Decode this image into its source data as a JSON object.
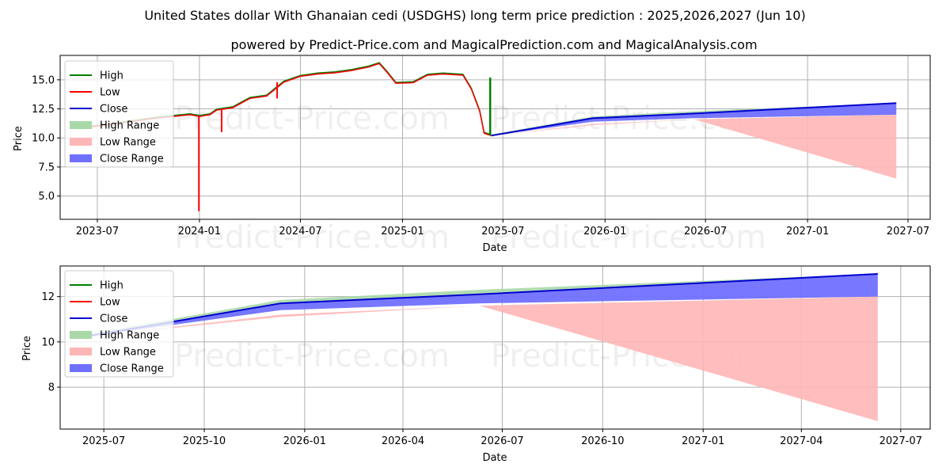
{
  "title_line1": "United States dollar With Ghanaian cedi (USDGHS) long term price prediction : 2025,2026,2027 (Jun 10)",
  "title_line2": "powered by Predict-Price.com and MagicalPrediction.com and MagicalAnalysis.com",
  "watermark": "Predict-Price.com",
  "legend": [
    "High",
    "Low",
    "Close",
    "High Range",
    "Low Range",
    "Close Range"
  ],
  "colors": {
    "high": "#008000",
    "low": "#ff0000",
    "close": "#0000cd",
    "high_range": "#a9d8a9",
    "low_range": "#ffb6b6",
    "close_range": "#7070ff",
    "grid": "#b0b0b0"
  },
  "chart_data": [
    {
      "type": "line",
      "xlabel": "Date",
      "ylabel": "Price",
      "xlim": [
        "2023-04-25",
        "2027-08-10"
      ],
      "ylim": [
        3.0,
        17.1
      ],
      "x_ticks": [
        {
          "date": "2023-07-01",
          "label": "2023-07"
        },
        {
          "date": "2024-01-01",
          "label": "2024-01"
        },
        {
          "date": "2024-07-01",
          "label": "2024-07"
        },
        {
          "date": "2025-01-01",
          "label": "2025-01"
        },
        {
          "date": "2025-07-01",
          "label": "2025-07"
        },
        {
          "date": "2026-01-01",
          "label": "2026-01"
        },
        {
          "date": "2026-07-01",
          "label": "2026-07"
        },
        {
          "date": "2027-01-01",
          "label": "2027-01"
        },
        {
          "date": "2027-07-01",
          "label": "2027-07"
        }
      ],
      "y_ticks": [
        5.0,
        7.5,
        10.0,
        12.5,
        15.0
      ],
      "history": [
        [
          "2023-06-15",
          10.9
        ],
        [
          "2023-07-15",
          11.1
        ],
        [
          "2023-09-01",
          11.4
        ],
        [
          "2023-10-15",
          11.7
        ],
        [
          "2023-11-15",
          11.85
        ],
        [
          "2023-12-15",
          12.0
        ],
        [
          "2024-01-01",
          11.85
        ],
        [
          "2024-01-20",
          12.0
        ],
        [
          "2024-02-01",
          12.4
        ],
        [
          "2024-03-01",
          12.6
        ],
        [
          "2024-04-01",
          13.4
        ],
        [
          "2024-05-01",
          13.6
        ],
        [
          "2024-06-01",
          14.8
        ],
        [
          "2024-07-01",
          15.3
        ],
        [
          "2024-08-01",
          15.5
        ],
        [
          "2024-09-01",
          15.6
        ],
        [
          "2024-10-01",
          15.8
        ],
        [
          "2024-11-01",
          16.1
        ],
        [
          "2024-11-20",
          16.4
        ],
        [
          "2024-12-05",
          15.6
        ],
        [
          "2024-12-20",
          14.7
        ],
        [
          "2025-01-20",
          14.75
        ],
        [
          "2025-02-15",
          15.4
        ],
        [
          "2025-03-15",
          15.5
        ],
        [
          "2025-04-20",
          15.4
        ],
        [
          "2025-05-05",
          14.2
        ],
        [
          "2025-05-20",
          12.3
        ],
        [
          "2025-05-28",
          10.4
        ],
        [
          "2025-06-10",
          10.2
        ]
      ],
      "low_spikes": [
        {
          "date": "2023-12-31",
          "value": 3.7
        },
        {
          "date": "2024-02-10",
          "value": 10.5
        },
        {
          "date": "2024-05-20",
          "value": 13.4
        }
      ],
      "high_spikes": [
        {
          "date": "2025-06-08",
          "value": 15.2
        }
      ],
      "forecast_close": [
        [
          "2025-06-10",
          10.2
        ],
        [
          "2025-12-10",
          11.7
        ],
        [
          "2026-06-10",
          12.1
        ],
        [
          "2027-06-10",
          13.0
        ]
      ],
      "forecast_high": [
        [
          "2025-06-10",
          10.3
        ],
        [
          "2025-12-10",
          11.85
        ],
        [
          "2026-06-10",
          12.3
        ],
        [
          "2027-06-10",
          13.0
        ]
      ],
      "forecast_low_range_upper": [
        [
          "2025-06-10",
          10.2
        ],
        [
          "2025-12-10",
          11.2
        ],
        [
          "2026-06-10",
          11.6
        ],
        [
          "2027-06-10",
          12.0
        ]
      ],
      "forecast_low_range_lower": [
        [
          "2025-06-10",
          10.2
        ],
        [
          "2025-12-10",
          11.1
        ],
        [
          "2026-06-10",
          11.6
        ],
        [
          "2027-06-10",
          6.5
        ]
      ],
      "forecast_close_range_lower": [
        [
          "2025-06-10",
          10.2
        ],
        [
          "2025-12-10",
          11.4
        ],
        [
          "2026-06-10",
          11.7
        ],
        [
          "2027-06-10",
          12.0
        ]
      ]
    },
    {
      "type": "line",
      "xlabel": "Date",
      "ylabel": "Price",
      "xlim": [
        "2025-05-22",
        "2027-07-28"
      ],
      "ylim": [
        6.15,
        13.35
      ],
      "x_ticks": [
        {
          "date": "2025-07-01",
          "label": "2025-07"
        },
        {
          "date": "2025-10-01",
          "label": "2025-10"
        },
        {
          "date": "2026-01-01",
          "label": "2026-01"
        },
        {
          "date": "2026-04-01",
          "label": "2026-04"
        },
        {
          "date": "2026-07-01",
          "label": "2026-07"
        },
        {
          "date": "2026-10-01",
          "label": "2026-10"
        },
        {
          "date": "2027-01-01",
          "label": "2027-01"
        },
        {
          "date": "2027-04-01",
          "label": "2027-04"
        },
        {
          "date": "2027-07-01",
          "label": "2027-07"
        }
      ],
      "y_ticks": [
        8,
        10,
        12
      ]
    }
  ]
}
